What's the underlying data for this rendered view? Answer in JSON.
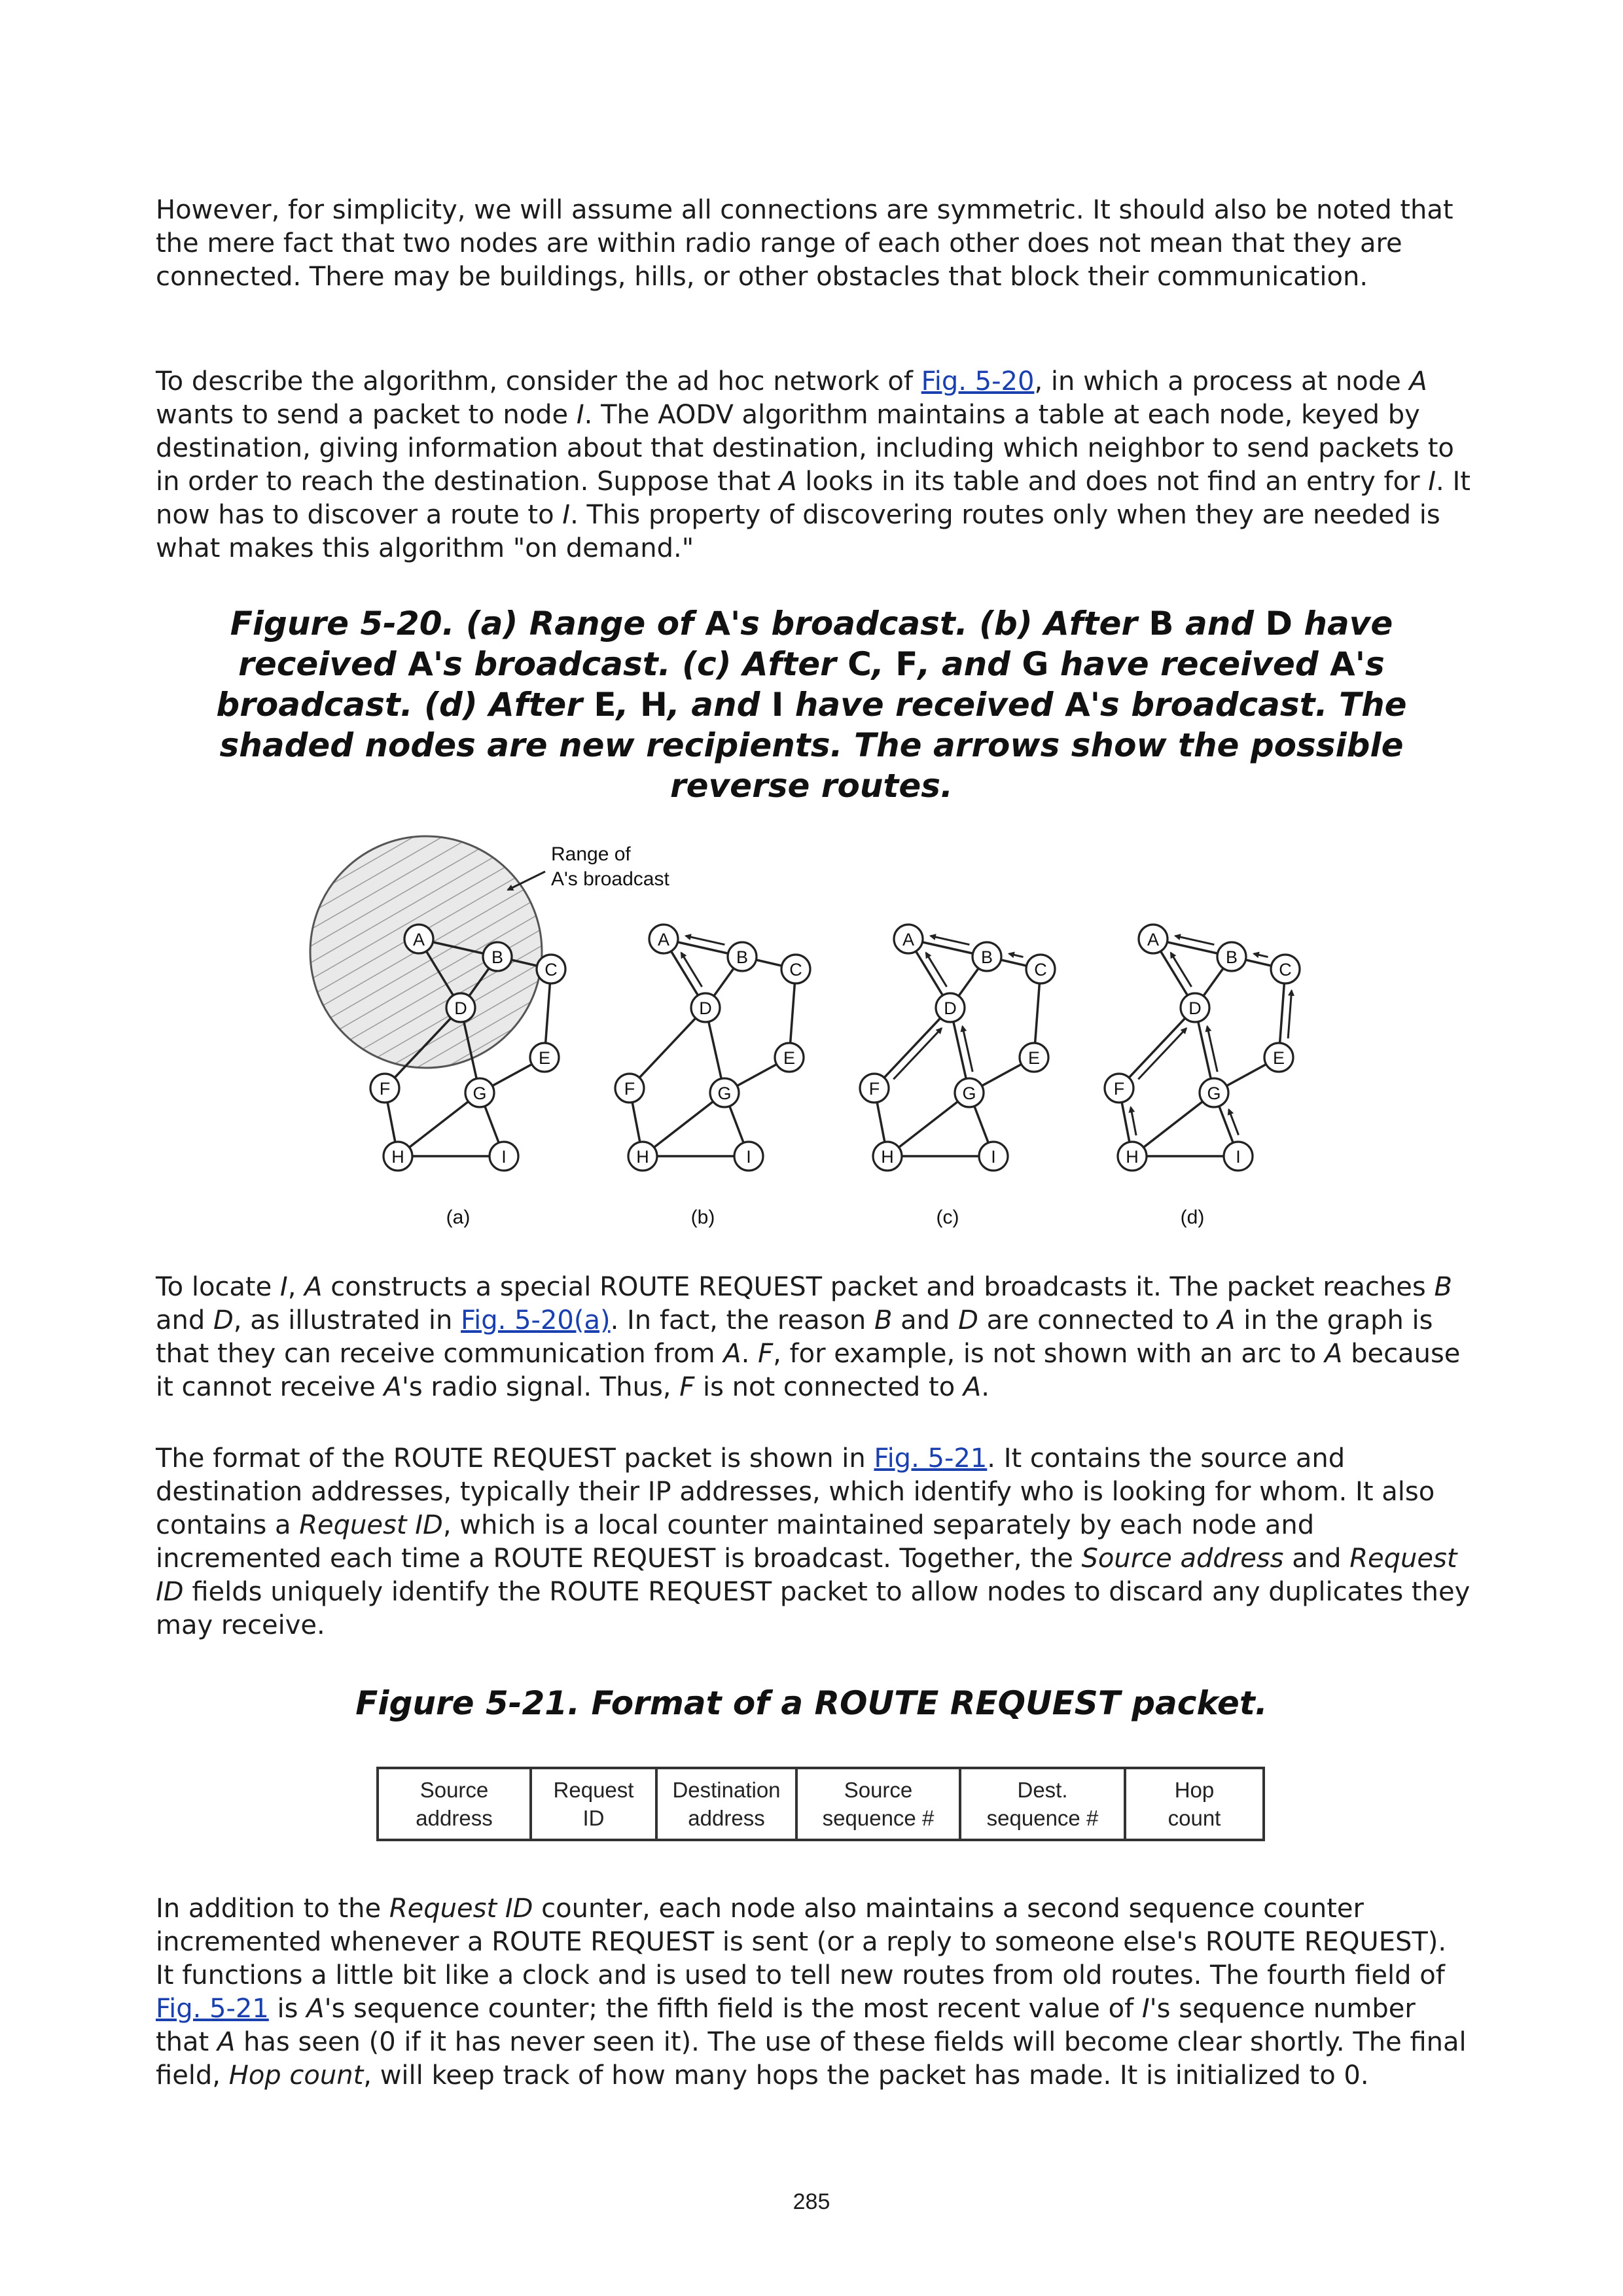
{
  "paragraphs": {
    "p1": "However, for simplicity, we will assume all connections are symmetric. It should also be noted that the mere fact that two nodes are within radio range of each other does not mean that they are connected. There may be buildings, hills, or other obstacles that block their communication.",
    "p2": {
      "a": "To describe the algorithm, consider the ad hoc network of ",
      "link": "Fig. 5-20",
      "b": ", in which a process at node ",
      "A1": "A",
      "c": " wants to send a packet to node ",
      "I1": "I",
      "d": ". The AODV algorithm maintains a table at each node, keyed by destination, giving information about that destination, including which neighbor to send packets to in order to reach the destination. Suppose that ",
      "A2": "A",
      "e": " looks in its table and does not find an entry for ",
      "I2": "I",
      "f": ". It now has to discover a route to ",
      "I3": "I",
      "g": ". This property of discovering routes only when they are needed is what makes this algorithm \"on demand.\""
    },
    "p3": {
      "a": "To locate ",
      "I1": "I",
      "b": ", ",
      "A1": "A",
      "c": " constructs a special ROUTE REQUEST packet and broadcasts it. The packet reaches ",
      "B1": "B",
      "d": " and ",
      "D1": "D",
      "e": ", as illustrated in ",
      "link": "Fig. 5-20(a)",
      "f": ". In fact, the reason ",
      "B2": "B",
      "g": " and ",
      "D2": "D",
      "h": " are connected to ",
      "A2": "A",
      "i": " in the graph is that they can receive communication from ",
      "A3": "A",
      "j": ". ",
      "F1": "F",
      "k": ", for example, is not shown with an arc to ",
      "A4": "A",
      "l": " because it cannot receive ",
      "A5": "A",
      "m": "'s radio signal. Thus, ",
      "F2": "F",
      "n": " is not connected to ",
      "A6": "A",
      "o": "."
    },
    "p4": {
      "a": "The format of the ROUTE REQUEST packet is shown in ",
      "link": "Fig. 5-21",
      "b": ". It contains the source and destination addresses, typically their IP addresses, which identify who is looking for whom. It also contains a ",
      "req": "Request ID",
      "c": ", which is a local counter maintained separately by each node and incremented each time a ROUTE REQUEST is broadcast. Together, the ",
      "src": "Source address",
      "d": " and ",
      "req2": "Request ID",
      "e": " fields uniquely identify the ROUTE REQUEST packet to allow nodes to discard any duplicates they may receive."
    },
    "p5": {
      "a": "In addition to the ",
      "req": "Request ID",
      "b": " counter, each node also maintains a second sequence counter incremented whenever a ROUTE REQUEST is sent (or a reply to someone else's ROUTE REQUEST). It functions a little bit like a clock and is used to tell new routes from old routes. The fourth field of ",
      "link": "Fig. 5-21",
      "c": " is ",
      "A1": "A",
      "d": "'s sequence counter; the fifth field is the most recent value of ",
      "I1": "I",
      "e": "'s sequence number that ",
      "A2": "A",
      "f": " has seen (0 if it has never seen it). The use of these fields will become clear shortly. The final field, ",
      "hop": "Hop count",
      "g": ", will keep track of how many hops the packet has made. It is initialized to 0."
    }
  },
  "caption520": {
    "a": "Figure 5-20. (a) Range of ",
    "A1": "A",
    "b": "'s broadcast. (b) After ",
    "B": "B",
    "c": " and ",
    "D": "D",
    "d": " have received ",
    "A2": "A",
    "e": "'s broadcast. (c) After ",
    "C": "C",
    "f": ", ",
    "F": "F",
    "g": ", and ",
    "G": "G",
    "h": " have received ",
    "A3": "A",
    "i": "'s broadcast. (d) After ",
    "E": "E",
    "j": ", ",
    "H": "H",
    "k": ", and ",
    "I": "I",
    "l": " have received ",
    "A4": "A",
    "m": "'s broadcast. The shaded nodes are new recipients. The arrows show the possible reverse routes."
  },
  "figure520": {
    "range_label_1": "Range of",
    "range_label_2": "A's broadcast",
    "nodes": [
      "A",
      "B",
      "C",
      "D",
      "E",
      "F",
      "G",
      "H",
      "I"
    ],
    "panel_labels": [
      "(a)",
      "(b)",
      "(c)",
      "(d)"
    ]
  },
  "caption521": "Figure 5-21. Format of a ROUTE REQUEST packet.",
  "table521": {
    "fields": [
      [
        "Source",
        "address"
      ],
      [
        "Request",
        "ID"
      ],
      [
        "Destination",
        "address"
      ],
      [
        "Source",
        "sequence #"
      ],
      [
        "Dest.",
        "sequence #"
      ],
      [
        "Hop",
        "count"
      ]
    ]
  },
  "page_number": "285"
}
